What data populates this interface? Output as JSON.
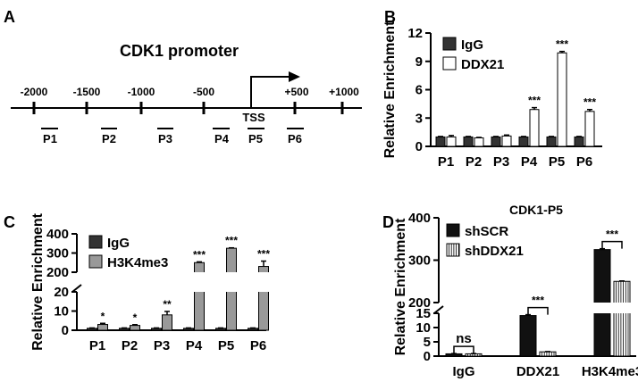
{
  "panels": {
    "A": {
      "label": "A",
      "title": "CDK1 promoter",
      "positions": [
        "-2000",
        "-1500",
        "-1000",
        "-500",
        "+500",
        "+1000"
      ],
      "tss": "TSS",
      "probes": [
        "P1",
        "P2",
        "P3",
        "P4",
        "P5",
        "P6"
      ]
    },
    "B": {
      "label": "B"
    },
    "C": {
      "label": "C"
    },
    "D": {
      "label": "D"
    }
  },
  "colors": {
    "igg": "#333333",
    "h3k4me3": "#999999",
    "shscr": "#111111"
  },
  "chart_data": [
    {
      "panel": "B",
      "type": "bar",
      "ylabel": "Relative Enrichment",
      "ylim": [
        0,
        12
      ],
      "yticks": [
        "0",
        "3",
        "6",
        "9",
        "12"
      ],
      "categories": [
        "P1",
        "P2",
        "P3",
        "P4",
        "P5",
        "P6"
      ],
      "series": [
        {
          "name": "IgG",
          "values": [
            1,
            1,
            1,
            1,
            1,
            1
          ],
          "errors": [
            0.05,
            0.05,
            0.05,
            0.05,
            0.05,
            0.05
          ]
        },
        {
          "name": "DDX21",
          "values": [
            1.0,
            0.9,
            1.1,
            3.9,
            9.9,
            3.7
          ],
          "errors": [
            0.15,
            0.05,
            0.1,
            0.2,
            0.15,
            0.2
          ]
        }
      ],
      "significance": [
        "",
        "",
        "",
        "***",
        "***",
        "***"
      ]
    },
    {
      "panel": "C",
      "type": "bar",
      "ylabel": "Relative Enrichment",
      "axis_break": [
        20,
        200
      ],
      "yticks_lower": [
        "0",
        "10",
        "20"
      ],
      "yticks_upper": [
        "200",
        "300",
        "400"
      ],
      "categories": [
        "P1",
        "P2",
        "P3",
        "P4",
        "P5",
        "P6"
      ],
      "series": [
        {
          "name": "IgG",
          "values": [
            1,
            1,
            1,
            1,
            1,
            1
          ],
          "errors": [
            0.2,
            0.2,
            0.2,
            0.2,
            0.2,
            0.2
          ]
        },
        {
          "name": "H3K4me3",
          "values": [
            3,
            2.5,
            8,
            250,
            325,
            230
          ],
          "errors": [
            0.6,
            0.4,
            1.8,
            4,
            2,
            28
          ]
        }
      ],
      "significance": [
        "*",
        "*",
        "**",
        "***",
        "***",
        "***"
      ]
    },
    {
      "panel": "D",
      "type": "bar",
      "title": "CDK1-P5",
      "ylabel": "Relative Enrichment",
      "axis_break": [
        15,
        200
      ],
      "yticks_lower": [
        "0",
        "5",
        "10",
        "15"
      ],
      "yticks_upper": [
        "200",
        "300",
        "400"
      ],
      "categories": [
        "IgG",
        "DDX21",
        "H3K4me3"
      ],
      "series": [
        {
          "name": "shSCR",
          "values": [
            0.8,
            14.2,
            325
          ],
          "errors": [
            0.1,
            0.3,
            2
          ]
        },
        {
          "name": "shDDX21",
          "values": [
            0.8,
            1.5,
            250
          ],
          "errors": [
            0.1,
            0.1,
            1
          ]
        }
      ],
      "significance": [
        "ns",
        "***",
        "***"
      ]
    }
  ]
}
